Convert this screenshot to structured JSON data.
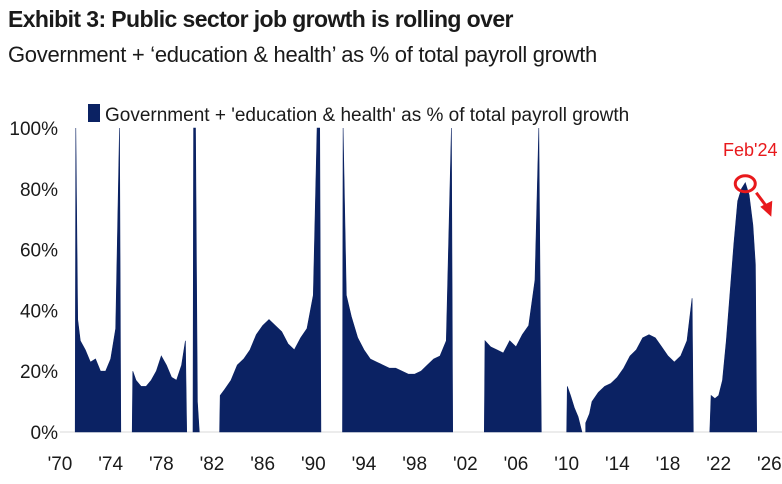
{
  "title": "Exhibit 3: Public sector job growth is rolling over",
  "subtitle": "Government + ‘education & health’ as % of total payroll growth",
  "colors": {
    "series": "#0b2263",
    "annotation": "#e8191c"
  },
  "chart_data": {
    "type": "area",
    "title": "Exhibit 3: Public sector job growth is rolling over",
    "subtitle": "Government + ‘education & health’ as % of total payroll growth",
    "xlabel": "",
    "ylabel": "",
    "xlim": [
      1970,
      2027
    ],
    "ylim": [
      0,
      100
    ],
    "y_ticks": [
      "0%",
      "20%",
      "40%",
      "60%",
      "80%",
      "100%"
    ],
    "y_tick_values": [
      0,
      20,
      40,
      60,
      80,
      100
    ],
    "x_ticks": [
      "'70",
      "'74",
      "'78",
      "'82",
      "'86",
      "'90",
      "'94",
      "'98",
      "'02",
      "'06",
      "'10",
      "'14",
      "'18",
      "'22",
      "'26"
    ],
    "x_tick_values": [
      1970,
      1974,
      1978,
      1982,
      1986,
      1990,
      1994,
      1998,
      2002,
      2006,
      2010,
      2014,
      2018,
      2022,
      2026
    ],
    "legend": {
      "position": "top",
      "label": "Government + 'education & health' as % of total payroll growth"
    },
    "annotation": {
      "label": "Feb'24",
      "x": 2024.1,
      "y": 82
    },
    "series": [
      {
        "name": "Government + 'education & health' as % of total payroll growth",
        "x": [
          1971.2,
          1971.25,
          1971.4,
          1971.6,
          1972.0,
          1972.4,
          1972.8,
          1973.2,
          1973.6,
          1974.0,
          1974.4,
          1974.7,
          1974.8,
          null,
          1975.7,
          1975.75,
          1976.0,
          1976.4,
          1976.8,
          1977.2,
          1977.6,
          1978.0,
          1978.4,
          1978.8,
          1979.2,
          1979.6,
          1979.9,
          1980.0,
          null,
          1980.5,
          1980.55,
          1980.7,
          1980.85,
          1981.0,
          null,
          1982.6,
          1982.65,
          1983.0,
          1983.5,
          1984.0,
          1984.5,
          1985.0,
          1985.5,
          1986.0,
          1986.5,
          1987.0,
          1987.5,
          1988.0,
          1988.5,
          1989.0,
          1989.5,
          1990.0,
          1990.3,
          1990.5,
          1990.6,
          null,
          1992.3,
          1992.35,
          1992.6,
          1993.0,
          1993.5,
          1994.0,
          1994.5,
          1995.0,
          1995.5,
          1996.0,
          1996.5,
          1997.0,
          1997.5,
          1998.0,
          1998.5,
          1999.0,
          1999.5,
          2000.0,
          2000.5,
          2000.9,
          2001.0,
          null,
          2003.5,
          2003.55,
          2004.0,
          2004.5,
          2005.0,
          2005.5,
          2006.0,
          2006.5,
          2007.0,
          2007.5,
          2007.8,
          2008.0,
          null,
          2010.0,
          2010.05,
          2010.3,
          2010.6,
          2010.9,
          2011.2,
          null,
          2011.5,
          2011.8,
          2012.0,
          2012.5,
          2013.0,
          2013.5,
          2014.0,
          2014.5,
          2015.0,
          2015.5,
          2016.0,
          2016.5,
          2017.0,
          2017.5,
          2018.0,
          2018.5,
          2019.0,
          2019.5,
          2019.9,
          2020.0,
          null,
          2021.3,
          2021.4,
          2021.7,
          2022.0,
          2022.3,
          2022.6,
          2022.9,
          2023.2,
          2023.5,
          2023.8,
          2024.1,
          2024.4,
          2024.7,
          2024.9,
          2025.0
        ],
        "values": [
          0,
          100,
          37,
          30,
          27,
          23,
          24,
          20,
          20,
          24,
          34,
          100,
          0,
          null,
          0,
          20,
          17,
          15,
          15,
          17,
          20,
          25,
          22,
          18,
          17,
          22,
          30,
          0,
          null,
          0,
          100,
          100,
          10,
          0,
          null,
          0,
          12,
          14,
          17,
          22,
          24,
          27,
          32,
          35,
          37,
          35,
          33,
          29,
          27,
          31,
          34,
          45,
          100,
          100,
          0,
          null,
          0,
          100,
          45,
          38,
          31,
          27,
          24,
          23,
          22,
          21,
          21,
          20,
          19,
          19,
          20,
          22,
          24,
          25,
          30,
          100,
          0,
          null,
          0,
          30,
          28,
          27,
          26,
          30,
          28,
          32,
          35,
          50,
          100,
          0,
          null,
          0,
          15,
          12,
          8,
          5,
          0,
          null,
          3,
          6,
          10,
          13,
          15,
          16,
          18,
          21,
          25,
          27,
          31,
          32,
          31,
          28,
          25,
          23,
          25,
          30,
          44,
          0,
          null,
          0,
          12,
          11,
          12,
          17,
          30,
          46,
          62,
          76,
          80,
          82,
          78,
          68,
          55,
          0
        ]
      }
    ]
  }
}
